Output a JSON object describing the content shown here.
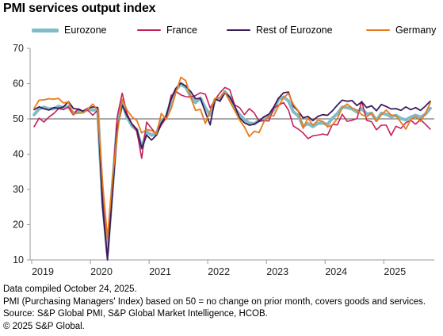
{
  "chart_data": {
    "type": "line",
    "title": "PMI services output index",
    "xlabel": "",
    "ylabel": "",
    "ylim": [
      10,
      70
    ],
    "yticks": [
      10,
      20,
      30,
      40,
      50,
      60,
      70
    ],
    "xlim": [
      "2019-01",
      "2025-10"
    ],
    "xticks": [
      "2019",
      "2020",
      "2021",
      "2022",
      "2023",
      "2024",
      "2025"
    ],
    "reference_line": 50,
    "grid": false,
    "legend": "top",
    "months": [
      "2019-01",
      "2019-02",
      "2019-03",
      "2019-04",
      "2019-05",
      "2019-06",
      "2019-07",
      "2019-08",
      "2019-09",
      "2019-10",
      "2019-11",
      "2019-12",
      "2020-01",
      "2020-02",
      "2020-03",
      "2020-04",
      "2020-05",
      "2020-06",
      "2020-07",
      "2020-08",
      "2020-09",
      "2020-10",
      "2020-11",
      "2020-12",
      "2021-01",
      "2021-02",
      "2021-03",
      "2021-04",
      "2021-05",
      "2021-06",
      "2021-07",
      "2021-08",
      "2021-09",
      "2021-10",
      "2021-11",
      "2021-12",
      "2022-01",
      "2022-02",
      "2022-03",
      "2022-04",
      "2022-05",
      "2022-06",
      "2022-07",
      "2022-08",
      "2022-09",
      "2022-10",
      "2022-11",
      "2022-12",
      "2023-01",
      "2023-02",
      "2023-03",
      "2023-04",
      "2023-05",
      "2023-06",
      "2023-07",
      "2023-08",
      "2023-09",
      "2023-10",
      "2023-11",
      "2023-12",
      "2024-01",
      "2024-02",
      "2024-03",
      "2024-04",
      "2024-05",
      "2024-06",
      "2024-07",
      "2024-08",
      "2024-09",
      "2024-10",
      "2024-11",
      "2024-12",
      "2025-01",
      "2025-02",
      "2025-03",
      "2025-04",
      "2025-05",
      "2025-06",
      "2025-07",
      "2025-08",
      "2025-09",
      "2025-10"
    ],
    "series": [
      {
        "name": "Eurozone",
        "color": "#7fbcc8",
        "width": 4,
        "values": [
          51.2,
          52.8,
          53.3,
          52.8,
          52.9,
          53.6,
          53.2,
          53.5,
          51.6,
          52.2,
          51.9,
          52.8,
          52.5,
          52.6,
          26.4,
          12.0,
          30.5,
          48.3,
          54.7,
          50.5,
          48.0,
          46.9,
          41.7,
          46.4,
          45.4,
          45.7,
          49.6,
          50.5,
          55.2,
          58.3,
          59.8,
          59.0,
          56.4,
          54.6,
          55.9,
          53.1,
          51.1,
          55.5,
          55.6,
          57.7,
          56.1,
          53.0,
          51.2,
          49.8,
          48.8,
          48.6,
          49.5,
          49.8,
          50.8,
          52.7,
          55.6,
          56.2,
          55.1,
          52.0,
          50.9,
          47.9,
          48.7,
          47.8,
          48.7,
          48.8,
          48.4,
          50.2,
          51.5,
          53.3,
          53.2,
          52.8,
          51.9,
          52.9,
          51.4,
          51.6,
          49.5,
          51.6,
          51.3,
          50.6,
          51.0,
          50.1,
          49.7,
          50.5,
          51.0,
          50.5,
          51.3,
          53.0
        ]
      },
      {
        "name": "France",
        "color": "#c41f5c",
        "width": 1.6,
        "values": [
          47.8,
          50.2,
          49.1,
          50.5,
          51.5,
          52.9,
          52.6,
          53.4,
          51.1,
          52.9,
          52.2,
          52.4,
          51.0,
          52.5,
          27.4,
          10.2,
          31.1,
          50.7,
          57.3,
          51.5,
          48.5,
          46.5,
          38.8,
          49.1,
          47.3,
          45.6,
          48.2,
          50.3,
          56.6,
          57.8,
          56.8,
          56.3,
          56.2,
          56.6,
          57.4,
          57.0,
          53.1,
          55.5,
          57.4,
          58.9,
          58.3,
          53.9,
          53.2,
          51.2,
          52.9,
          51.7,
          49.3,
          49.5,
          49.4,
          53.1,
          53.9,
          54.6,
          52.5,
          48.0,
          47.1,
          46.0,
          44.4,
          45.2,
          45.4,
          45.7,
          45.4,
          48.4,
          48.3,
          51.3,
          49.3,
          49.6,
          50.1,
          55.0,
          49.6,
          49.2,
          46.9,
          48.2,
          48.2,
          45.3,
          47.9,
          47.3,
          48.9,
          49.6,
          48.5,
          49.8,
          48.5,
          47.1
        ]
      },
      {
        "name": "Rest of Eurozone",
        "color": "#3c1a5b",
        "width": 1.8,
        "values": [
          52.6,
          53.4,
          52.9,
          52.5,
          53.2,
          53.0,
          53.4,
          54.9,
          53.0,
          52.7,
          52.2,
          53.0,
          53.4,
          53.2,
          25.0,
          10.0,
          28.7,
          47.2,
          53.9,
          50.9,
          48.6,
          47.0,
          41.7,
          45.4,
          44.0,
          45.4,
          48.8,
          50.8,
          55.6,
          58.7,
          60.2,
          59.3,
          57.8,
          55.7,
          55.8,
          51.9,
          48.3,
          55.7,
          55.0,
          57.4,
          56.2,
          53.7,
          50.3,
          48.9,
          48.2,
          48.5,
          49.4,
          50.6,
          51.3,
          53.4,
          55.9,
          57.4,
          57.6,
          53.6,
          52.2,
          50.3,
          50.7,
          49.5,
          50.7,
          51.2,
          51.0,
          52.3,
          53.9,
          55.3,
          55.0,
          55.2,
          53.8,
          54.8,
          53.2,
          53.7,
          52.3,
          54.1,
          53.5,
          52.8,
          52.9,
          52.4,
          53.4,
          52.6,
          53.2,
          52.4,
          53.6,
          55.0
        ]
      },
      {
        "name": "Germany",
        "color": "#ea7a19",
        "width": 1.8,
        "values": [
          53.0,
          55.3,
          55.4,
          55.7,
          55.6,
          55.8,
          54.5,
          54.8,
          51.4,
          51.6,
          51.7,
          52.9,
          54.2,
          52.5,
          31.7,
          16.2,
          32.6,
          45.8,
          55.6,
          52.5,
          50.6,
          49.5,
          46.0,
          47.0,
          46.7,
          45.7,
          51.5,
          49.9,
          52.8,
          57.5,
          61.8,
          60.8,
          56.2,
          52.4,
          52.7,
          48.7,
          52.2,
          55.8,
          56.1,
          57.6,
          55.0,
          52.4,
          49.7,
          47.7,
          45.0,
          46.5,
          46.1,
          49.2,
          50.7,
          50.9,
          53.7,
          56.0,
          57.2,
          54.1,
          52.3,
          47.3,
          50.3,
          48.2,
          49.6,
          49.3,
          47.7,
          48.3,
          50.1,
          53.2,
          54.2,
          53.1,
          52.5,
          51.2,
          50.6,
          51.6,
          49.3,
          51.2,
          52.5,
          51.1,
          50.9,
          49.0,
          47.1,
          49.7,
          50.6,
          49.3,
          51.5,
          54.5
        ]
      }
    ]
  },
  "notes": [
    "Data compiled October 24, 2025.",
    "PMI (Purchasing Managers' Index) based on 50 = no change on prior month, covers goods and services.",
    "Source: S&P Global PMI, S&P Global Market Intelligence, HCOB.",
    "© 2025 S&P Global."
  ]
}
